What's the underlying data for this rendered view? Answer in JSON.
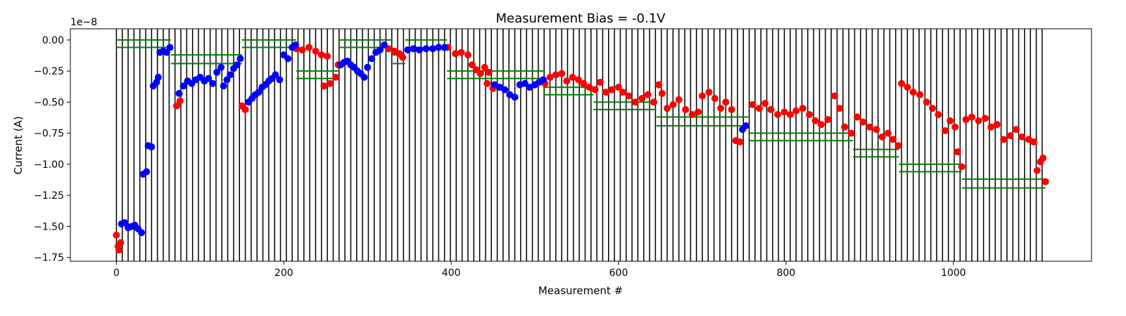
{
  "chart_data": {
    "type": "scatter",
    "title": "Measurement Bias = -0.1V",
    "xlabel": "Measurement #",
    "ylabel": "Current (A)",
    "y_offset_label": "1e−8",
    "xlim": [
      -55,
      1165
    ],
    "ylim": [
      -1.78,
      0.09
    ],
    "x_ticks": [
      0,
      200,
      400,
      600,
      800,
      1000
    ],
    "x_tick_labels": [
      "0",
      "200",
      "400",
      "600",
      "800",
      "1000"
    ],
    "y_ticks": [
      0.0,
      -0.25,
      -0.5,
      -0.75,
      -1.0,
      -1.25,
      -1.5,
      -1.75
    ],
    "y_tick_labels": [
      "0.00",
      "−0.25",
      "−0.50",
      "−0.75",
      "−1.00",
      "−1.25",
      "−1.50",
      "−1.75"
    ],
    "grid": false,
    "vertical_lines": {
      "color": "#000000",
      "start": 0,
      "end": 1108,
      "step": 7,
      "y_top": 0.09,
      "y_bottom": -1.78
    },
    "step_segments": {
      "color": "#008000",
      "segments": [
        {
          "x": [
            0,
            65
          ],
          "y": [
            0.0,
            -0.06
          ]
        },
        {
          "x": [
            65,
            150
          ],
          "y": [
            -0.12,
            -0.19
          ]
        },
        {
          "x": [
            150,
            215
          ],
          "y": [
            0.0,
            -0.06
          ]
        },
        {
          "x": [
            215,
            265
          ],
          "y": [
            -0.25,
            -0.31
          ]
        },
        {
          "x": [
            265,
            330
          ],
          "y": [
            0.0,
            -0.06
          ]
        },
        {
          "x": [
            330,
            345
          ],
          "y": [
            -0.12,
            -0.19
          ]
        },
        {
          "x": [
            345,
            395
          ],
          "y": [
            0.0,
            -0.06
          ]
        },
        {
          "x": [
            395,
            510
          ],
          "y": [
            -0.25,
            -0.31
          ]
        },
        {
          "x": [
            510,
            570
          ],
          "y": [
            -0.38,
            -0.44
          ]
        },
        {
          "x": [
            570,
            645
          ],
          "y": [
            -0.5,
            -0.56
          ]
        },
        {
          "x": [
            645,
            755
          ],
          "y": [
            -0.62,
            -0.69
          ]
        },
        {
          "x": [
            755,
            880
          ],
          "y": [
            -0.75,
            -0.81
          ]
        },
        {
          "x": [
            880,
            935
          ],
          "y": [
            -0.88,
            -0.94
          ]
        },
        {
          "x": [
            935,
            1010
          ],
          "y": [
            -1.0,
            -1.06
          ]
        },
        {
          "x": [
            1010,
            1110
          ],
          "y": [
            -1.12,
            -1.19
          ]
        }
      ]
    },
    "series": [
      {
        "color": "#ff0000",
        "points": [
          [
            0,
            -1.57
          ],
          [
            2,
            -1.66
          ],
          [
            3,
            -1.69
          ],
          [
            5,
            -1.63
          ],
          [
            72,
            -0.53
          ],
          [
            76,
            -0.49
          ],
          [
            150,
            -0.53
          ],
          [
            154,
            -0.56
          ],
          [
            215,
            -0.07
          ],
          [
            222,
            -0.08
          ],
          [
            230,
            -0.06
          ],
          [
            238,
            -0.09
          ],
          [
            245,
            -0.12
          ],
          [
            252,
            -0.13
          ],
          [
            248,
            -0.37
          ],
          [
            255,
            -0.35
          ],
          [
            262,
            -0.3
          ],
          [
            265,
            -0.2
          ],
          [
            325,
            -0.07
          ],
          [
            332,
            -0.09
          ],
          [
            338,
            -0.11
          ],
          [
            342,
            -0.14
          ],
          [
            396,
            -0.06
          ],
          [
            405,
            -0.11
          ],
          [
            412,
            -0.1
          ],
          [
            420,
            -0.12
          ],
          [
            425,
            -0.2
          ],
          [
            430,
            -0.24
          ],
          [
            435,
            -0.27
          ],
          [
            440,
            -0.22
          ],
          [
            445,
            -0.26
          ],
          [
            450,
            -0.39
          ],
          [
            443,
            -0.35
          ],
          [
            512,
            -0.35
          ],
          [
            518,
            -0.3
          ],
          [
            525,
            -0.28
          ],
          [
            532,
            -0.27
          ],
          [
            538,
            -0.33
          ],
          [
            545,
            -0.3
          ],
          [
            552,
            -0.32
          ],
          [
            558,
            -0.35
          ],
          [
            565,
            -0.38
          ],
          [
            572,
            -0.4
          ],
          [
            578,
            -0.34
          ],
          [
            585,
            -0.42
          ],
          [
            592,
            -0.4
          ],
          [
            600,
            -0.38
          ],
          [
            605,
            -0.42
          ],
          [
            612,
            -0.45
          ],
          [
            620,
            -0.5
          ],
          [
            628,
            -0.47
          ],
          [
            635,
            -0.44
          ],
          [
            642,
            -0.5
          ],
          [
            648,
            -0.36
          ],
          [
            652,
            -0.43
          ],
          [
            658,
            -0.55
          ],
          [
            665,
            -0.52
          ],
          [
            672,
            -0.48
          ],
          [
            680,
            -0.56
          ],
          [
            688,
            -0.6
          ],
          [
            695,
            -0.58
          ],
          [
            700,
            -0.45
          ],
          [
            708,
            -0.42
          ],
          [
            715,
            -0.47
          ],
          [
            722,
            -0.55
          ],
          [
            728,
            -0.5
          ],
          [
            735,
            -0.56
          ],
          [
            740,
            -0.81
          ],
          [
            745,
            -0.82
          ],
          [
            760,
            -0.52
          ],
          [
            768,
            -0.55
          ],
          [
            775,
            -0.51
          ],
          [
            782,
            -0.56
          ],
          [
            790,
            -0.6
          ],
          [
            798,
            -0.58
          ],
          [
            805,
            -0.6
          ],
          [
            812,
            -0.57
          ],
          [
            820,
            -0.55
          ],
          [
            828,
            -0.6
          ],
          [
            835,
            -0.65
          ],
          [
            842,
            -0.68
          ],
          [
            850,
            -0.64
          ],
          [
            858,
            -0.45
          ],
          [
            864,
            -0.55
          ],
          [
            870,
            -0.7
          ],
          [
            878,
            -0.75
          ],
          [
            885,
            -0.62
          ],
          [
            892,
            -0.66
          ],
          [
            900,
            -0.7
          ],
          [
            908,
            -0.72
          ],
          [
            915,
            -0.78
          ],
          [
            922,
            -0.75
          ],
          [
            928,
            -0.8
          ],
          [
            934,
            -0.85
          ],
          [
            938,
            -0.35
          ],
          [
            945,
            -0.38
          ],
          [
            952,
            -0.42
          ],
          [
            960,
            -0.44
          ],
          [
            968,
            -0.5
          ],
          [
            975,
            -0.55
          ],
          [
            982,
            -0.6
          ],
          [
            990,
            -0.73
          ],
          [
            996,
            -0.65
          ],
          [
            1002,
            -0.7
          ],
          [
            1005,
            -0.9
          ],
          [
            1010,
            -1.02
          ],
          [
            1015,
            -0.64
          ],
          [
            1022,
            -0.62
          ],
          [
            1030,
            -0.65
          ],
          [
            1038,
            -0.63
          ],
          [
            1045,
            -0.7
          ],
          [
            1052,
            -0.68
          ],
          [
            1060,
            -0.8
          ],
          [
            1068,
            -0.77
          ],
          [
            1075,
            -0.72
          ],
          [
            1082,
            -0.78
          ],
          [
            1090,
            -0.8
          ],
          [
            1096,
            -0.82
          ],
          [
            1100,
            -1.05
          ],
          [
            1104,
            -0.98
          ],
          [
            1107,
            -0.95
          ],
          [
            1110,
            -1.14
          ]
        ]
      },
      {
        "color": "#0000ff",
        "points": [
          [
            6,
            -1.48
          ],
          [
            10,
            -1.47
          ],
          [
            14,
            -1.51
          ],
          [
            18,
            -1.5
          ],
          [
            22,
            -1.49
          ],
          [
            26,
            -1.52
          ],
          [
            30,
            -1.55
          ],
          [
            32,
            -1.08
          ],
          [
            36,
            -1.06
          ],
          [
            38,
            -0.85
          ],
          [
            42,
            -0.86
          ],
          [
            44,
            -0.37
          ],
          [
            48,
            -0.34
          ],
          [
            50,
            -0.3
          ],
          [
            52,
            -0.1
          ],
          [
            56,
            -0.09
          ],
          [
            60,
            -0.1
          ],
          [
            64,
            -0.06
          ],
          [
            75,
            -0.43
          ],
          [
            80,
            -0.37
          ],
          [
            85,
            -0.33
          ],
          [
            90,
            -0.35
          ],
          [
            95,
            -0.32
          ],
          [
            100,
            -0.3
          ],
          [
            105,
            -0.33
          ],
          [
            110,
            -0.31
          ],
          [
            115,
            -0.35
          ],
          [
            120,
            -0.26
          ],
          [
            125,
            -0.22
          ],
          [
            128,
            -0.37
          ],
          [
            132,
            -0.32
          ],
          [
            136,
            -0.28
          ],
          [
            140,
            -0.23
          ],
          [
            144,
            -0.2
          ],
          [
            148,
            -0.15
          ],
          [
            158,
            -0.5
          ],
          [
            162,
            -0.47
          ],
          [
            166,
            -0.44
          ],
          [
            170,
            -0.42
          ],
          [
            174,
            -0.38
          ],
          [
            178,
            -0.36
          ],
          [
            182,
            -0.33
          ],
          [
            186,
            -0.31
          ],
          [
            190,
            -0.28
          ],
          [
            195,
            -0.32
          ],
          [
            200,
            -0.12
          ],
          [
            205,
            -0.15
          ],
          [
            210,
            -0.06
          ],
          [
            214,
            -0.04
          ],
          [
            268,
            -0.2
          ],
          [
            272,
            -0.18
          ],
          [
            276,
            -0.17
          ],
          [
            280,
            -0.2
          ],
          [
            284,
            -0.22
          ],
          [
            288,
            -0.25
          ],
          [
            292,
            -0.27
          ],
          [
            296,
            -0.3
          ],
          [
            300,
            -0.22
          ],
          [
            305,
            -0.15
          ],
          [
            310,
            -0.1
          ],
          [
            315,
            -0.08
          ],
          [
            320,
            -0.04
          ],
          [
            348,
            -0.08
          ],
          [
            355,
            -0.07
          ],
          [
            362,
            -0.08
          ],
          [
            370,
            -0.07
          ],
          [
            378,
            -0.07
          ],
          [
            385,
            -0.06
          ],
          [
            392,
            -0.06
          ],
          [
            452,
            -0.36
          ],
          [
            458,
            -0.38
          ],
          [
            464,
            -0.4
          ],
          [
            470,
            -0.44
          ],
          [
            476,
            -0.46
          ],
          [
            482,
            -0.36
          ],
          [
            488,
            -0.35
          ],
          [
            494,
            -0.38
          ],
          [
            500,
            -0.36
          ],
          [
            505,
            -0.34
          ],
          [
            510,
            -0.32
          ],
          [
            748,
            -0.72
          ],
          [
            752,
            -0.69
          ]
        ]
      }
    ]
  }
}
